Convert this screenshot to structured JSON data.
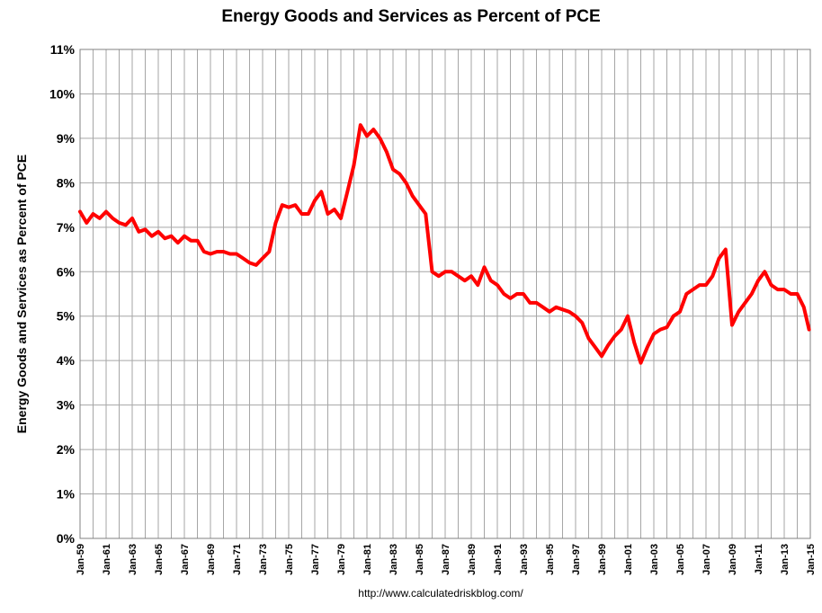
{
  "chart_data": {
    "type": "line",
    "title": "Energy Goods and Services as Percent of PCE",
    "xlabel": "",
    "ylabel": "Energy Goods and Services as Percent of PCE",
    "y_tick_labels": [
      "0%",
      "1%",
      "2%",
      "3%",
      "4%",
      "5%",
      "6%",
      "7%",
      "8%",
      "9%",
      "10%",
      "11%"
    ],
    "ylim": [
      0,
      11
    ],
    "xlim": [
      1959.0,
      2015.0
    ],
    "x_tick_labels": [
      "Jan-59",
      "Jan-61",
      "Jan-63",
      "Jan-65",
      "Jan-67",
      "Jan-69",
      "Jan-71",
      "Jan-73",
      "Jan-75",
      "Jan-77",
      "Jan-79",
      "Jan-81",
      "Jan-83",
      "Jan-85",
      "Jan-87",
      "Jan-89",
      "Jan-91",
      "Jan-93",
      "Jan-95",
      "Jan-97",
      "Jan-99",
      "Jan-01",
      "Jan-03",
      "Jan-05",
      "Jan-07",
      "Jan-09",
      "Jan-11",
      "Jan-13",
      "Jan-15"
    ],
    "grid": true,
    "series": [
      {
        "name": "Energy Goods and Services as Percent of PCE",
        "color": "#ff0000",
        "x": [
          1959.0,
          1959.5,
          1960.0,
          1960.5,
          1961.0,
          1961.5,
          1962.0,
          1962.5,
          1963.0,
          1963.5,
          1964.0,
          1964.5,
          1965.0,
          1965.5,
          1966.0,
          1966.5,
          1967.0,
          1967.5,
          1968.0,
          1968.5,
          1969.0,
          1969.5,
          1970.0,
          1970.5,
          1971.0,
          1971.5,
          1972.0,
          1972.5,
          1973.0,
          1973.5,
          1974.0,
          1974.5,
          1975.0,
          1975.5,
          1976.0,
          1976.5,
          1977.0,
          1977.5,
          1978.0,
          1978.5,
          1979.0,
          1979.5,
          1980.0,
          1980.5,
          1981.0,
          1981.5,
          1982.0,
          1982.5,
          1983.0,
          1983.5,
          1984.0,
          1984.5,
          1985.0,
          1985.5,
          1986.0,
          1986.5,
          1987.0,
          1987.5,
          1988.0,
          1988.5,
          1989.0,
          1989.5,
          1990.0,
          1990.5,
          1991.0,
          1991.5,
          1992.0,
          1992.5,
          1993.0,
          1993.5,
          1994.0,
          1994.5,
          1995.0,
          1995.5,
          1996.0,
          1996.5,
          1997.0,
          1997.5,
          1998.0,
          1998.5,
          1999.0,
          1999.5,
          2000.0,
          2000.5,
          2001.0,
          2001.5,
          2002.0,
          2002.5,
          2003.0,
          2003.5,
          2004.0,
          2004.5,
          2005.0,
          2005.5,
          2006.0,
          2006.5,
          2007.0,
          2007.5,
          2008.0,
          2008.5,
          2009.0,
          2009.5,
          2010.0,
          2010.5,
          2011.0,
          2011.5,
          2012.0,
          2012.5,
          2013.0,
          2013.5,
          2014.0,
          2014.5,
          2014.9
        ],
        "y": [
          7.35,
          7.1,
          7.3,
          7.2,
          7.35,
          7.2,
          7.1,
          7.05,
          7.2,
          6.9,
          6.95,
          6.8,
          6.9,
          6.75,
          6.8,
          6.65,
          6.8,
          6.7,
          6.7,
          6.45,
          6.4,
          6.45,
          6.45,
          6.4,
          6.4,
          6.3,
          6.2,
          6.15,
          6.3,
          6.45,
          7.1,
          7.5,
          7.45,
          7.5,
          7.3,
          7.3,
          7.6,
          7.8,
          7.3,
          7.4,
          7.2,
          7.8,
          8.4,
          9.3,
          9.05,
          9.2,
          9.0,
          8.7,
          8.3,
          8.2,
          8.0,
          7.7,
          7.5,
          7.3,
          6.0,
          5.9,
          6.0,
          6.0,
          5.9,
          5.8,
          5.9,
          5.7,
          6.1,
          5.8,
          5.7,
          5.5,
          5.4,
          5.5,
          5.5,
          5.3,
          5.3,
          5.2,
          5.1,
          5.2,
          5.15,
          5.1,
          5.0,
          4.85,
          4.5,
          4.3,
          4.1,
          4.35,
          4.55,
          4.7,
          5.0,
          4.4,
          3.95,
          4.3,
          4.6,
          4.7,
          4.75,
          5.0,
          5.1,
          5.5,
          5.6,
          5.7,
          5.7,
          5.9,
          6.3,
          6.5,
          4.8,
          5.1,
          5.3,
          5.5,
          5.8,
          6.0,
          5.7,
          5.6,
          5.6,
          5.5,
          5.5,
          5.2,
          4.7
        ]
      }
    ]
  },
  "source_url": "http://www.calculatedriskblog.com/"
}
